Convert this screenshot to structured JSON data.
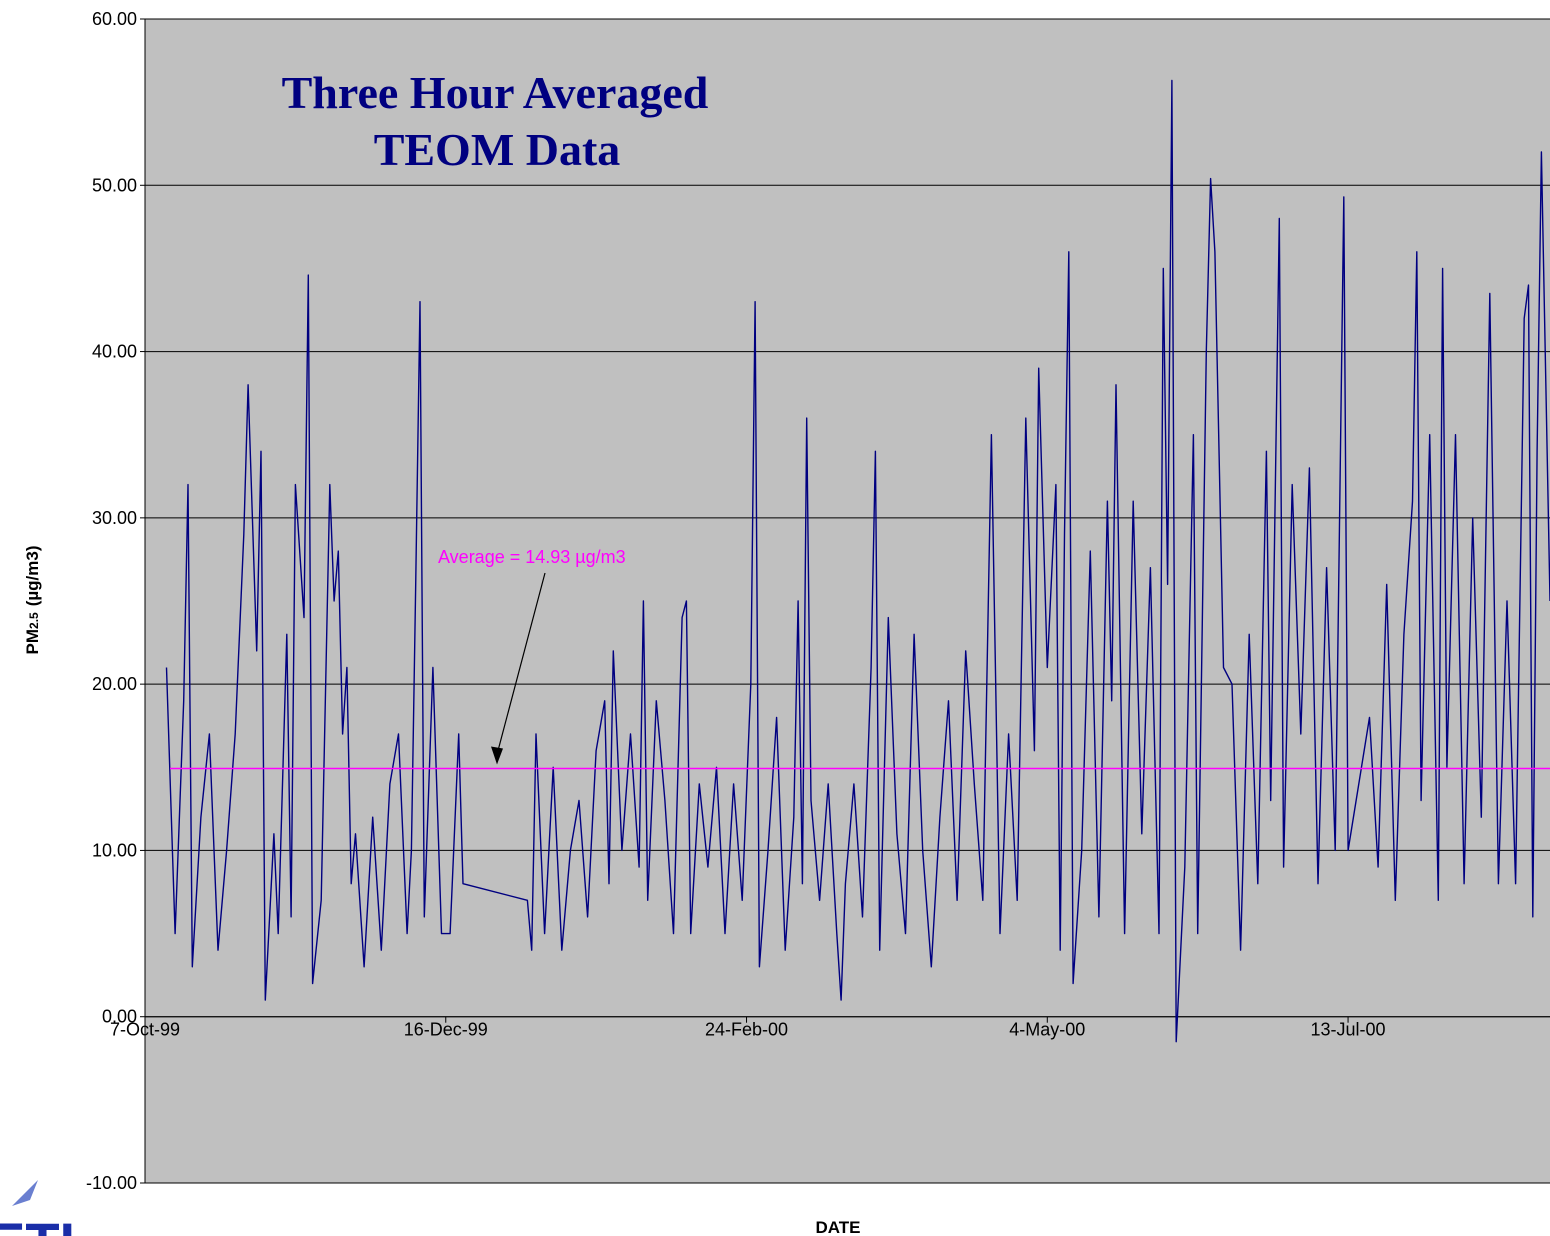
{
  "chart_data": {
    "type": "line",
    "title": [
      "Three Hour Averaged",
      "TEOM Data"
    ],
    "x_label": "DATE",
    "y_label": {
      "main": "PM",
      "sub": "2.5",
      "unit": "(µg/m3)"
    },
    "logo_text": "ETI",
    "color": "#000080",
    "ylim": [
      -10,
      60
    ],
    "yticks": [
      {
        "value": -10,
        "label": "-10.00"
      },
      {
        "value": 0,
        "label": "0.00"
      },
      {
        "value": 10,
        "label": "10.00"
      },
      {
        "value": 20,
        "label": "20.00"
      },
      {
        "value": 30,
        "label": "30.00"
      },
      {
        "value": 40,
        "label": "40.00"
      },
      {
        "value": 50,
        "label": "50.00"
      },
      {
        "value": 60,
        "label": "60.00"
      }
    ],
    "xlim": [
      "1999-10-07",
      "2000-08-29"
    ],
    "xticks": [
      {
        "value": "1999-10-07",
        "label": "7-Oct-99"
      },
      {
        "value": "1999-12-16",
        "label": "16-Dec-99"
      },
      {
        "value": "2000-02-24",
        "label": "24-Feb-00"
      },
      {
        "value": "2000-05-04",
        "label": "4-May-00"
      },
      {
        "value": "2000-07-13",
        "label": "13-Jul-00"
      }
    ],
    "grid": true,
    "average": {
      "value": 14.93,
      "label": "Average = 14.93 µg/m3",
      "color": "#ff00ff"
    },
    "x": [
      "1999-10-12",
      "1999-10-14",
      "1999-10-16",
      "1999-10-17",
      "1999-10-18",
      "1999-10-20",
      "1999-10-22",
      "1999-10-24",
      "1999-10-26",
      "1999-10-28",
      "1999-10-30",
      "1999-10-31",
      "1999-11-02",
      "1999-11-03",
      "1999-11-04",
      "1999-11-06",
      "1999-11-07",
      "1999-11-09",
      "1999-11-10",
      "1999-11-11",
      "1999-11-13",
      "1999-11-14",
      "1999-11-15",
      "1999-11-17",
      "1999-11-19",
      "1999-11-20",
      "1999-11-21",
      "1999-11-22",
      "1999-11-23",
      "1999-11-24",
      "1999-11-25",
      "1999-11-27",
      "1999-11-29",
      "1999-12-01",
      "1999-12-03",
      "1999-12-05",
      "1999-12-07",
      "1999-12-08",
      "1999-12-09",
      "1999-12-10",
      "1999-12-11",
      "1999-12-13",
      "1999-12-15",
      "1999-12-17",
      "1999-12-19",
      "1999-12-20",
      "2000-01-04",
      "2000-01-05",
      "2000-01-06",
      "2000-01-08",
      "2000-01-10",
      "2000-01-12",
      "2000-01-14",
      "2000-01-16",
      "2000-01-18",
      "2000-01-20",
      "2000-01-22",
      "2000-01-23",
      "2000-01-24",
      "2000-01-26",
      "2000-01-28",
      "2000-01-30",
      "2000-01-31",
      "2000-02-01",
      "2000-02-03",
      "2000-02-05",
      "2000-02-07",
      "2000-02-09",
      "2000-02-10",
      "2000-02-11",
      "2000-02-13",
      "2000-02-15",
      "2000-02-17",
      "2000-02-19",
      "2000-02-21",
      "2000-02-23",
      "2000-02-25",
      "2000-02-26",
      "2000-02-27",
      "2000-02-29",
      "2000-03-02",
      "2000-03-04",
      "2000-03-06",
      "2000-03-07",
      "2000-03-08",
      "2000-03-09",
      "2000-03-10",
      "2000-03-12",
      "2000-03-14",
      "2000-03-16",
      "2000-03-17",
      "2000-03-18",
      "2000-03-20",
      "2000-03-22",
      "2000-03-24",
      "2000-03-25",
      "2000-03-26",
      "2000-03-28",
      "2000-03-30",
      "2000-04-01",
      "2000-04-03",
      "2000-04-05",
      "2000-04-07",
      "2000-04-09",
      "2000-04-11",
      "2000-04-13",
      "2000-04-15",
      "2000-04-17",
      "2000-04-19",
      "2000-04-21",
      "2000-04-23",
      "2000-04-25",
      "2000-04-27",
      "2000-04-29",
      "2000-05-01",
      "2000-05-02",
      "2000-05-04",
      "2000-05-06",
      "2000-05-07",
      "2000-05-08",
      "2000-05-09",
      "2000-05-10",
      "2000-05-12",
      "2000-05-14",
      "2000-05-16",
      "2000-05-18",
      "2000-05-19",
      "2000-05-20",
      "2000-05-22",
      "2000-05-24",
      "2000-05-26",
      "2000-05-28",
      "2000-05-30",
      "2000-05-31",
      "2000-06-01",
      "2000-06-02",
      "2000-06-03",
      "2000-06-05",
      "2000-06-07",
      "2000-06-08",
      "2000-06-10",
      "2000-06-11",
      "2000-06-12",
      "2000-06-14",
      "2000-06-16",
      "2000-06-18",
      "2000-06-20",
      "2000-06-22",
      "2000-06-24",
      "2000-06-25",
      "2000-06-27",
      "2000-06-28",
      "2000-06-30",
      "2000-07-02",
      "2000-07-04",
      "2000-07-06",
      "2000-07-08",
      "2000-07-10",
      "2000-07-12",
      "2000-07-13",
      "2000-07-18",
      "2000-07-20",
      "2000-07-22",
      "2000-07-24",
      "2000-07-26",
      "2000-07-28",
      "2000-07-29",
      "2000-07-30",
      "2000-08-01",
      "2000-08-03",
      "2000-08-04",
      "2000-08-05",
      "2000-08-07",
      "2000-08-09",
      "2000-08-11",
      "2000-08-13",
      "2000-08-15",
      "2000-08-17",
      "2000-08-19",
      "2000-08-21",
      "2000-08-23",
      "2000-08-24",
      "2000-08-25",
      "2000-08-26",
      "2000-08-27",
      "2000-08-29"
    ],
    "values": [
      21,
      5,
      19,
      32,
      3,
      12,
      17,
      4,
      10,
      17,
      29,
      38,
      22,
      34,
      1,
      11,
      5,
      23,
      6,
      32,
      24,
      44.6,
      2,
      7,
      32,
      25,
      28,
      17,
      21,
      8,
      11,
      3,
      12,
      4,
      14,
      17,
      5,
      10,
      26,
      43,
      6,
      21,
      5,
      5,
      17,
      8,
      7,
      4,
      17,
      5,
      15,
      4,
      10,
      13,
      6,
      16,
      19,
      8,
      22,
      10,
      17,
      9,
      25,
      7,
      19,
      13,
      5,
      24,
      25,
      5,
      14,
      9,
      15,
      5,
      14,
      7,
      20,
      43,
      3,
      10,
      18,
      4,
      12,
      25,
      8,
      36,
      13,
      7,
      14,
      5,
      1,
      8,
      14,
      6,
      21,
      34,
      4,
      24,
      11,
      5,
      23,
      10,
      3,
      12,
      19,
      7,
      22,
      14,
      7,
      35,
      5,
      17,
      7,
      36,
      16,
      39,
      21,
      32,
      4,
      29,
      46,
      2,
      10,
      28,
      6,
      31,
      19,
      38,
      5,
      31,
      11,
      27,
      5,
      45,
      26,
      56.3,
      -1.5,
      9,
      35,
      5,
      40,
      50.4,
      46,
      21,
      20,
      4,
      23,
      8,
      34,
      13,
      48,
      9,
      32,
      17,
      33,
      8,
      27,
      10,
      49.3,
      10,
      18,
      9,
      26,
      7,
      23,
      31,
      46,
      13,
      35,
      7,
      45,
      15,
      35,
      8,
      30,
      12,
      43.5,
      8,
      25,
      8,
      42,
      44,
      6,
      34,
      52,
      25
    ]
  }
}
